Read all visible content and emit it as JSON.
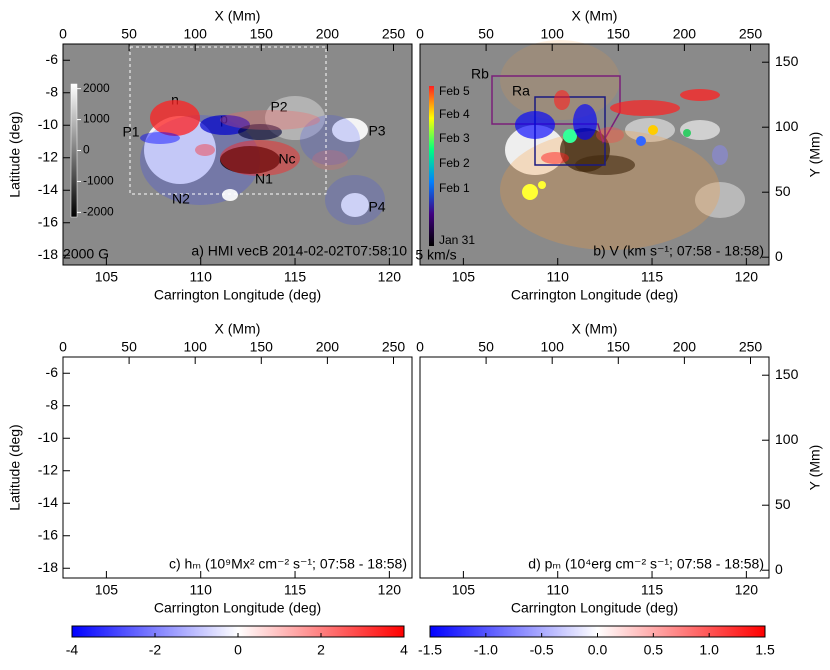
{
  "chart_data": [
    {
      "type": "image",
      "title": "a) HMI vecB  2014-02-02T07:58:10",
      "background": "#8a8a8a",
      "xlabel": "Carrington Longitude (deg)",
      "x2label": "X (Mm)",
      "ylabel": "Latitude (deg)",
      "xlim": [
        102.7,
        121.2
      ],
      "xticks": [
        105,
        110,
        115,
        120
      ],
      "x2lim": [
        0,
        264
      ],
      "x2ticks": [
        0,
        50,
        100,
        150,
        200,
        250
      ],
      "ylim": [
        -18.6,
        -5.0
      ],
      "yticks": [
        -18,
        -16,
        -14,
        -12,
        -10,
        -8,
        -6
      ],
      "colorbar": {
        "lim": [
          -2150,
          2150
        ],
        "ticks": [
          2000,
          1000,
          0,
          -1000,
          -2000
        ]
      },
      "annotations": [
        "n",
        "p",
        "P1",
        "P2",
        "P3",
        "P4",
        "N1",
        "N2",
        "Nc",
        "2000 G"
      ]
    },
    {
      "type": "image",
      "title": "b) V (km s⁻¹; 07:58 - 18:58)",
      "background": "#8a8a8a",
      "xlabel": "Carrington Longitude (deg)",
      "x2label": "X (Mm)",
      "y2label": "Y (Mm)",
      "xlim": [
        102.7,
        121.2
      ],
      "xticks": [
        105,
        110,
        115,
        120
      ],
      "x2lim": [
        0,
        264
      ],
      "x2ticks": [
        0,
        50,
        100,
        150,
        200,
        250
      ],
      "y2lim": [
        -6,
        164
      ],
      "y2ticks": [
        0,
        50,
        100,
        150
      ],
      "legend": [
        "Feb 5",
        "Feb 4",
        "Feb 3",
        "Feb 2",
        "Feb 1",
        "Jan 31"
      ],
      "annotations": [
        "Rb",
        "Ra",
        "5 km/s"
      ]
    },
    {
      "type": "image",
      "title": "c) hₘ (10⁹Mx² cm⁻² s⁻¹; 07:58 - 18:58)",
      "background": "#ffffff",
      "xlabel": "Carrington Longitude (deg)",
      "x2label": "X (Mm)",
      "ylabel": "Latitude (deg)",
      "xlim": [
        102.7,
        121.2
      ],
      "xticks": [
        105,
        110,
        115,
        120
      ],
      "x2lim": [
        0,
        264
      ],
      "x2ticks": [
        0,
        50,
        100,
        150,
        200,
        250
      ],
      "ylim": [
        -18.6,
        -5.0
      ],
      "yticks": [
        -18,
        -16,
        -14,
        -12,
        -10,
        -8,
        -6
      ]
    },
    {
      "type": "image",
      "title": "d) pₘ (10⁴erg cm⁻² s⁻¹; 07:58 - 18:58)",
      "background": "#ffffff",
      "xlabel": "Carrington Longitude (deg)",
      "x2label": "X (Mm)",
      "y2label": "Y (Mm)",
      "xlim": [
        102.7,
        121.2
      ],
      "xticks": [
        105,
        110,
        115,
        120
      ],
      "x2lim": [
        0,
        264
      ],
      "x2ticks": [
        0,
        50,
        100,
        150,
        200,
        250
      ],
      "y2lim": [
        -6,
        164
      ],
      "y2ticks": [
        0,
        50,
        100,
        150
      ]
    },
    {
      "type": "colorbar",
      "lim": [
        -4,
        4
      ],
      "ticks": [
        -4,
        -2,
        0,
        2,
        4
      ],
      "colors": [
        "#0000ff",
        "#ffffff",
        "#ff0000"
      ]
    },
    {
      "type": "colorbar",
      "lim": [
        -1.5,
        1.5
      ],
      "ticks": [
        -1.5,
        {
          "value": -1,
          "label": "-1.0"
        },
        -0.5,
        {
          "value": 0,
          "label": "0.0"
        },
        0.5,
        {
          "value": 1,
          "label": "1.0"
        },
        1.5
      ],
      "colors": [
        "#0000ff",
        "#ffffff",
        "#ff0000"
      ]
    }
  ]
}
